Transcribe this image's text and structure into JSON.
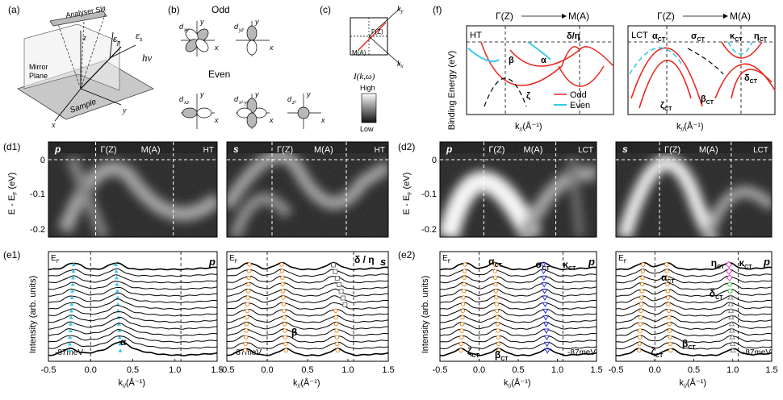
{
  "panel_labels": {
    "a": "(a)",
    "b": "(b)",
    "c": "(c)",
    "f": "(f)",
    "d1": "(d1)",
    "d2": "(d2)",
    "e1": "(e1)",
    "e2": "(e2)"
  },
  "panel_a": {
    "slit": "Analyser Slit",
    "mirror": "Mirror",
    "plane": "Plane",
    "sample": "Sample",
    "z": "z",
    "x": "x",
    "y": "y",
    "ep": "ε",
    "ep_sub": "p",
    "es": "ε",
    "es_sub": "s",
    "hv": "hν"
  },
  "panel_b": {
    "odd": "Odd",
    "even": "Even",
    "orbitals_odd": [
      "d",
      "d"
    ],
    "orbitals_odd_sub": [
      "xy",
      "yz"
    ],
    "orbitals_even": [
      "d",
      "d",
      "d"
    ],
    "orbitals_even_sub": [
      "xz",
      "x²-y²",
      "z²"
    ],
    "x": "x",
    "y": "y"
  },
  "panel_c": {
    "gamma": "Γ(Z)",
    "m": "M(A)",
    "kx": "k",
    "kx_sub": "x",
    "ky": "k",
    "ky_sub": "y",
    "intensity": "I(k,ω)",
    "high": "High",
    "low": "Low"
  },
  "panel_f": {
    "gamma": "Γ(Z)",
    "m": "M(A)",
    "ylabel": "Binding Energy (eV)",
    "ht": "HT",
    "lct": "LCT",
    "xlabel": "k",
    "xlabel_sub": "//",
    "xlabel_unit": "(Å⁻¹)",
    "legend_odd": "Odd",
    "legend_even": "Even",
    "ht_labels": [
      "β",
      "α",
      "δ/η",
      "ζ"
    ],
    "lct_labels": [
      "α",
      "σ",
      "κ",
      "η",
      "δ",
      "ζ",
      "β"
    ],
    "lct_label_sub": "CT",
    "colors": {
      "odd": "#e8281e",
      "even": "#38c8e8"
    }
  },
  "row_d": {
    "ylabel": "E - E",
    "ylabel_sub": "F",
    "ylabel_unit": " (eV)",
    "yticks": [
      "0",
      "-0.1",
      "-0.2"
    ],
    "maps": [
      {
        "pol": "p",
        "gamma": "Γ(Z)",
        "m": "M(A)",
        "phase": "HT"
      },
      {
        "pol": "s",
        "gamma": "Γ(Z)",
        "m": "M(A)",
        "phase": "HT"
      },
      {
        "pol": "p",
        "gamma": "Γ(Z)",
        "m": "M(A)",
        "phase": "LCT"
      },
      {
        "pol": "s",
        "gamma": "Γ(Z)",
        "m": "M(A)",
        "phase": "LCT"
      }
    ]
  },
  "row_e": {
    "ylabel": "Intensity (arb. units)",
    "xticks": [
      "-0.5",
      "0.0",
      "0.5",
      "1.0",
      "1.5"
    ],
    "xlabel": "k",
    "xlabel_sub": "//",
    "xlabel_unit": "(Å⁻¹)",
    "ef": "E",
    "ef_sub": "F",
    "bottom": "-87meV",
    "panels": [
      {
        "pol": "p",
        "labels": [
          "α"
        ]
      },
      {
        "pol": "s",
        "labels": [
          "δ / η",
          "β"
        ]
      },
      {
        "pol": "p",
        "labels": [
          "α",
          "σ",
          "κ",
          "ζ",
          "β"
        ],
        "sub": "CT"
      },
      {
        "pol": "p",
        "labels": [
          "α",
          "η",
          "κ",
          "δ",
          "ζ",
          "β"
        ],
        "sub": "CT"
      }
    ]
  }
}
